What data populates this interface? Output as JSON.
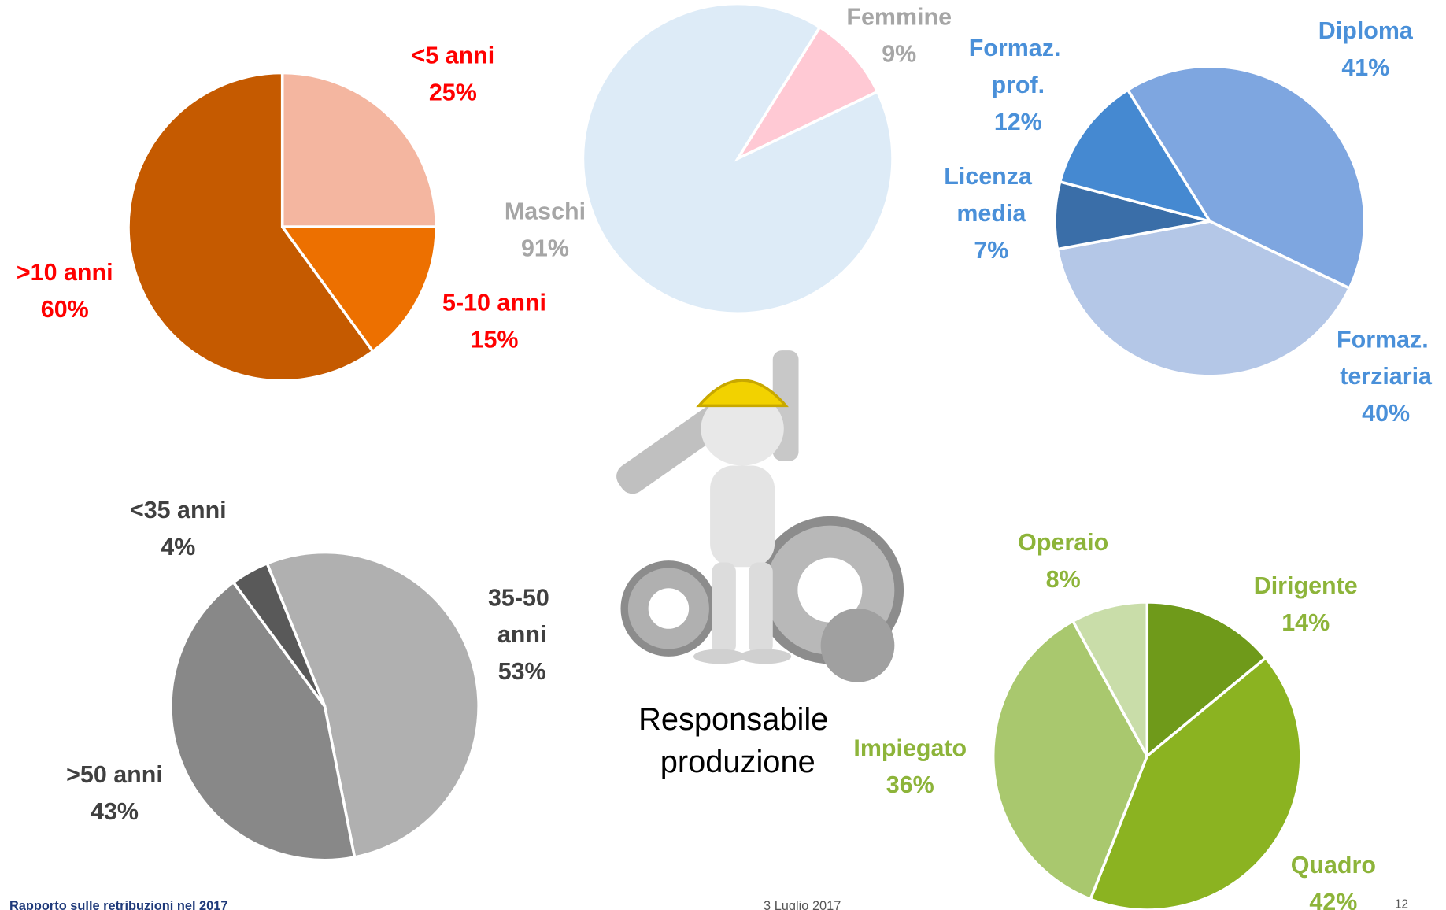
{
  "chart_data": [
    {
      "type": "pie",
      "categories": [
        "<5 anni",
        "5-10 anni",
        ">10 anni"
      ],
      "values": [
        25,
        15,
        60
      ],
      "value_labels": [
        "25%",
        "15%",
        "60%"
      ],
      "colors": [
        "#F4B6A0",
        "#ED7000",
        "#C55A00"
      ],
      "label_color": "#FF0000"
    },
    {
      "type": "pie",
      "categories": [
        "Femmine",
        "Maschi"
      ],
      "values": [
        9,
        91
      ],
      "value_labels": [
        "9%",
        "91%"
      ],
      "colors": [
        "#FFC9D4",
        "#DDEBF7"
      ],
      "label_color": "#A6A6A6"
    },
    {
      "type": "pie",
      "categories": [
        "Diploma",
        "Formaz. terziaria",
        "Licenza media",
        "Formaz. prof."
      ],
      "values": [
        41,
        40,
        7,
        12
      ],
      "value_labels": [
        "41%",
        "40%",
        "7%",
        "12%"
      ],
      "colors": [
        "#7EA6E0",
        "#B4C7E7",
        "#3A6EA8",
        "#4589D1"
      ],
      "label_color": "#4A90D9"
    },
    {
      "type": "pie",
      "categories": [
        "35-50 anni",
        ">50 anni",
        "<35 anni"
      ],
      "values": [
        53,
        43,
        4
      ],
      "value_labels": [
        "53%",
        "43%",
        "4%"
      ],
      "colors": [
        "#B0B0B0",
        "#888888",
        "#595959"
      ],
      "label_color": "#404040"
    },
    {
      "type": "pie",
      "categories": [
        "Dirigente",
        "Quadro",
        "Impiegato",
        "Operaio"
      ],
      "values": [
        14,
        42,
        36,
        8
      ],
      "value_labels": [
        "14%",
        "42%",
        "36%",
        "8%"
      ],
      "colors": [
        "#6F9A1A",
        "#8BB321",
        "#A9C86E",
        "#C9DDA9"
      ],
      "label_color": "#8DB43A"
    }
  ],
  "caption": "Responsabile produzione",
  "footer": {
    "source": "Rapporto sulle retribuzioni nel 2017",
    "date": "3 Luglio 2017",
    "page": "12"
  }
}
